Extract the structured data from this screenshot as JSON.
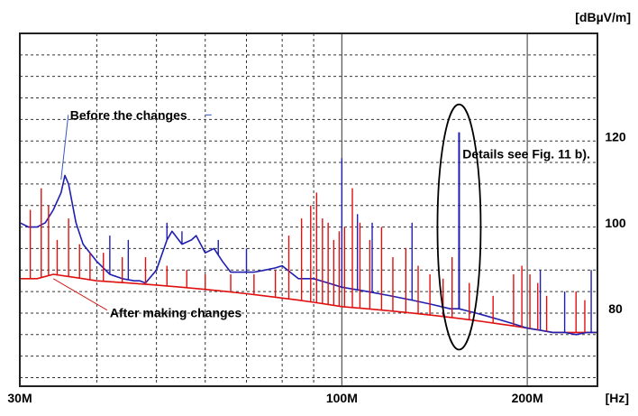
{
  "chart_data": {
    "type": "line",
    "xscale": "log",
    "xlim": [
      30,
      260
    ],
    "ylim": [
      62,
      144
    ],
    "grid": true,
    "x_unit": "[Hz]",
    "y_unit": "[dBµV/m]",
    "x_ticks": [
      {
        "value": 30,
        "label": "30M"
      },
      {
        "value": 100,
        "label": "100M"
      },
      {
        "value": 200,
        "label": "200M"
      }
    ],
    "y_ticks": [
      {
        "value": 120,
        "label": "120"
      },
      {
        "value": 100,
        "label": "100"
      },
      {
        "value": 80,
        "label": "80"
      }
    ],
    "colors": {
      "before": "#1f1fb0",
      "after": "#e01010",
      "grid": "#333333",
      "major_grid": "#555555"
    },
    "series": [
      {
        "key": "before",
        "x": [
          30,
          31,
          32,
          33,
          34,
          35,
          35.5,
          36,
          37,
          38,
          40,
          42,
          44,
          46,
          47,
          48,
          50,
          52,
          53,
          55,
          57,
          58,
          60,
          62,
          64,
          66,
          68,
          70,
          72,
          75,
          78,
          80,
          85,
          90,
          95,
          100,
          105,
          110,
          120,
          130,
          140,
          150,
          155,
          160,
          165,
          170,
          180,
          190,
          200,
          210,
          220,
          230,
          240,
          250,
          260
        ],
        "y": [
          100,
          99,
          99,
          100,
          103,
          107,
          111,
          109,
          100,
          95,
          91,
          88,
          87,
          86.5,
          86.5,
          86,
          89,
          96,
          98,
          95,
          96,
          97,
          93,
          94,
          91,
          88.5,
          88.5,
          88.5,
          88.5,
          89,
          89.5,
          90,
          87,
          87,
          86,
          85,
          84.5,
          84,
          83,
          82,
          81,
          80,
          80,
          79.5,
          79,
          78.5,
          77.5,
          76.5,
          75.5,
          75,
          74.5,
          74.5,
          74,
          74.5,
          74.5
        ]
      },
      {
        "key": "after",
        "x": [
          30,
          32,
          34,
          36,
          38,
          40,
          45,
          50,
          55,
          60,
          65,
          70,
          75,
          80,
          85,
          90,
          95,
          100,
          110,
          120,
          130,
          140,
          150,
          160,
          170,
          180,
          190,
          200,
          210,
          220,
          230,
          240,
          250,
          260
        ],
        "y": [
          87,
          87,
          88,
          87.5,
          87,
          86.5,
          86,
          85.5,
          85,
          84.5,
          84,
          83.5,
          83,
          82.5,
          82,
          81.5,
          81,
          80.5,
          80,
          79.5,
          79,
          78.5,
          78,
          77.5,
          77,
          76.5,
          76,
          75.5,
          75,
          74.5,
          74.5,
          74.5,
          74.5,
          74.5
        ]
      }
    ],
    "spikes": {
      "before": [
        {
          "x": 42,
          "y": 97
        },
        {
          "x": 45,
          "y": 96
        },
        {
          "x": 52,
          "y": 100
        },
        {
          "x": 55,
          "y": 98
        },
        {
          "x": 63,
          "y": 96
        },
        {
          "x": 70,
          "y": 94
        },
        {
          "x": 100,
          "y": 115
        },
        {
          "x": 106,
          "y": 102
        },
        {
          "x": 112,
          "y": 100
        },
        {
          "x": 130,
          "y": 100
        },
        {
          "x": 155,
          "y": 121
        },
        {
          "x": 210,
          "y": 89
        },
        {
          "x": 230,
          "y": 84
        },
        {
          "x": 254,
          "y": 89
        }
      ],
      "after": [
        {
          "x": 31.2,
          "y": 103
        },
        {
          "x": 32.5,
          "y": 108
        },
        {
          "x": 33.4,
          "y": 104
        },
        {
          "x": 34.5,
          "y": 96
        },
        {
          "x": 36,
          "y": 101
        },
        {
          "x": 37.5,
          "y": 95
        },
        {
          "x": 39,
          "y": 93
        },
        {
          "x": 41,
          "y": 93
        },
        {
          "x": 44,
          "y": 92
        },
        {
          "x": 48,
          "y": 92
        },
        {
          "x": 52,
          "y": 90
        },
        {
          "x": 56,
          "y": 89
        },
        {
          "x": 60,
          "y": 88
        },
        {
          "x": 66,
          "y": 88
        },
        {
          "x": 72,
          "y": 88
        },
        {
          "x": 78,
          "y": 89
        },
        {
          "x": 82,
          "y": 97
        },
        {
          "x": 86,
          "y": 101
        },
        {
          "x": 89,
          "y": 104
        },
        {
          "x": 91,
          "y": 107
        },
        {
          "x": 93,
          "y": 101
        },
        {
          "x": 95,
          "y": 100
        },
        {
          "x": 97,
          "y": 96
        },
        {
          "x": 99,
          "y": 98
        },
        {
          "x": 101,
          "y": 99
        },
        {
          "x": 104,
          "y": 108
        },
        {
          "x": 107,
          "y": 100
        },
        {
          "x": 111,
          "y": 96
        },
        {
          "x": 116,
          "y": 99
        },
        {
          "x": 121,
          "y": 92
        },
        {
          "x": 127,
          "y": 94
        },
        {
          "x": 133,
          "y": 90
        },
        {
          "x": 139,
          "y": 88
        },
        {
          "x": 146,
          "y": 87
        },
        {
          "x": 151,
          "y": 92
        },
        {
          "x": 161,
          "y": 86
        },
        {
          "x": 176,
          "y": 83
        },
        {
          "x": 190,
          "y": 88
        },
        {
          "x": 196,
          "y": 90
        },
        {
          "x": 202,
          "y": 88
        },
        {
          "x": 208,
          "y": 86
        },
        {
          "x": 215,
          "y": 83
        },
        {
          "x": 240,
          "y": 84
        },
        {
          "x": 248,
          "y": 82
        }
      ]
    },
    "annotations": {
      "before": {
        "text": "Before the changes",
        "point_x": 35,
        "point_y": 110,
        "text_x": 36.2,
        "text_y": 124
      },
      "after": {
        "text": "After making changes",
        "point_x": 34,
        "point_y": 87,
        "text_x": 42,
        "text_y": 78
      },
      "details": {
        "text": "Details see Fig. 11 b).",
        "point_x": 155,
        "text_x": 157,
        "text_y": 115
      },
      "highlight": {
        "center_x": 155,
        "center_y": 99,
        "height_dy": 57
      }
    }
  }
}
